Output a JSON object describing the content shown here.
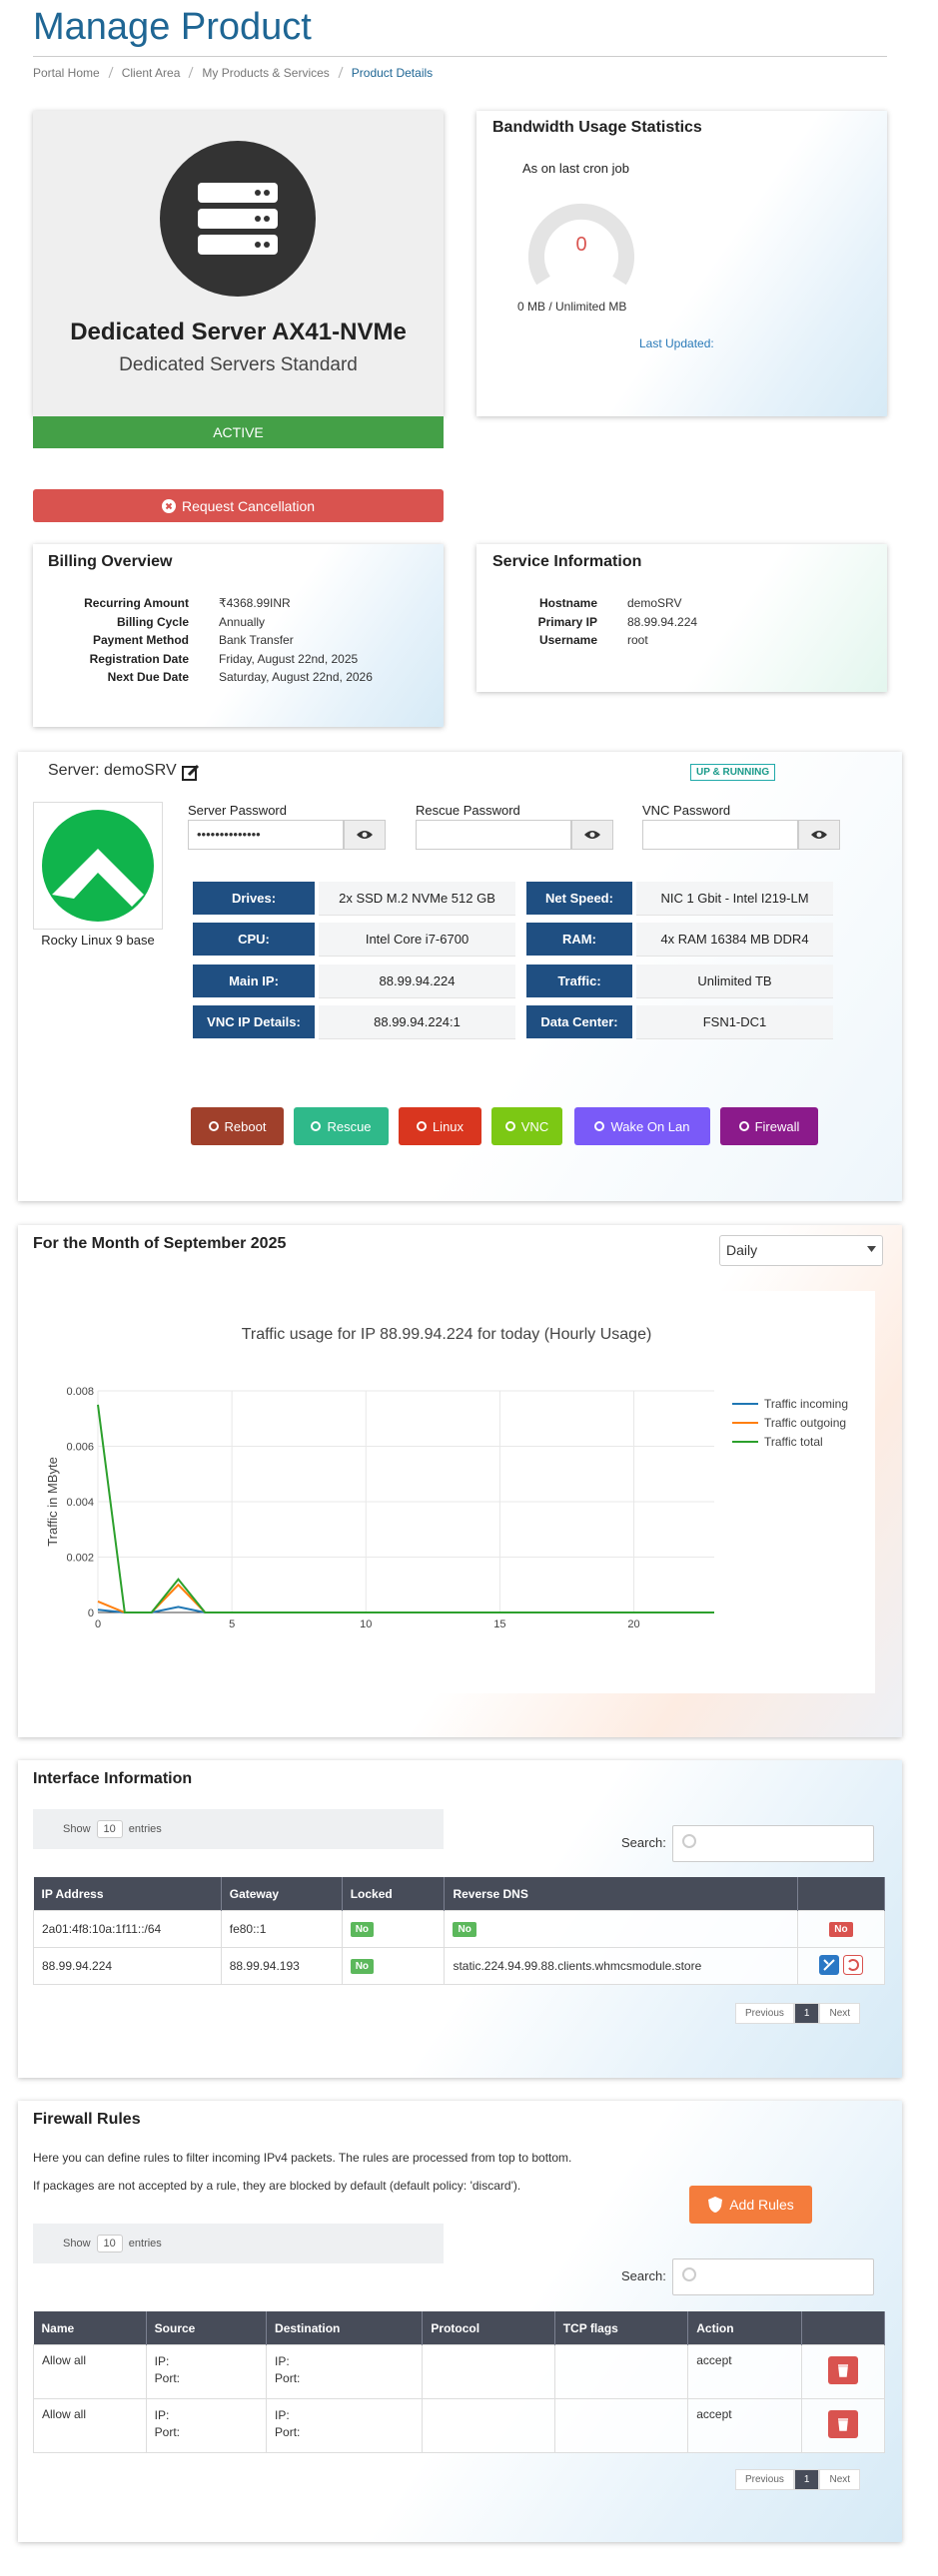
{
  "header": {
    "title": "Manage Product",
    "breadcrumb": [
      "Portal Home",
      "Client Area",
      "My Products & Services",
      "Product Details"
    ]
  },
  "product": {
    "name": "Dedicated Server AX41-NVMe",
    "group": "Dedicated Servers Standard",
    "status": "ACTIVE",
    "cancel_button": "Request Cancellation"
  },
  "bandwidth": {
    "title": "Bandwidth Usage Statistics",
    "subtitle": "As on last cron job",
    "gauge_value": 0,
    "usage": "0 MB / Unlimited MB",
    "last_updated": "Last Updated:"
  },
  "billing": {
    "title": "Billing Overview",
    "rows": [
      [
        "Recurring Amount",
        "₹4368.99INR"
      ],
      [
        "Billing Cycle",
        "Annually"
      ],
      [
        "Payment Method",
        "Bank Transfer"
      ],
      [
        "Registration Date",
        "Friday, August 22nd, 2025"
      ],
      [
        "Next Due Date",
        "Saturday, August 22nd, 2026"
      ]
    ]
  },
  "service": {
    "title": "Service Information",
    "rows": [
      [
        "Hostname",
        "demoSRV"
      ],
      [
        "Primary IP",
        "88.99.94.224"
      ],
      [
        "Username",
        "root"
      ]
    ]
  },
  "server": {
    "title": "Server: demoSRV",
    "status": "UP & RUNNING",
    "os": "Rocky Linux 9 base",
    "passwords": [
      {
        "label": "Server Password",
        "value": "••••••••••••••"
      },
      {
        "label": "Rescue Password"
      },
      {
        "label": "VNC Password"
      }
    ],
    "specs": [
      [
        "Drives:",
        "2x SSD M.2 NVMe 512 GB",
        "Net Speed:",
        "NIC 1 Gbit - Intel I219-LM"
      ],
      [
        "CPU:",
        "Intel Core i7-6700",
        "RAM:",
        "4x RAM 16384 MB DDR4"
      ],
      [
        "Main IP:",
        "88.99.94.224",
        "Traffic:",
        "Unlimited TB"
      ],
      [
        "VNC IP Details:",
        "88.99.94.224:1",
        "Data Center:",
        "FSN1-DC1"
      ]
    ],
    "actions": [
      "Reboot",
      "Rescue",
      "Linux",
      "VNC",
      "Wake On Lan",
      "Firewall"
    ]
  },
  "graph": {
    "title": "For the Month of September 2025",
    "period": "Daily"
  },
  "chart_data": {
    "type": "line",
    "title": "Traffic usage for IP 88.99.94.224 for today (Hourly Usage)",
    "y_label": "Traffic in MByte",
    "x": [
      0,
      1,
      2,
      3,
      4,
      5,
      6,
      7,
      8,
      9,
      10,
      11,
      12,
      13,
      14,
      15,
      16,
      17,
      18,
      19,
      20,
      21,
      22,
      23
    ],
    "xlim": [
      0,
      23
    ],
    "xticks": [
      0,
      5,
      10,
      15,
      20
    ],
    "ylim": [
      0,
      0.008
    ],
    "yticks": [
      0,
      0.002,
      0.004,
      0.006,
      0.008
    ],
    "grid": true,
    "legend": "right",
    "series": [
      {
        "name": "Traffic incoming",
        "color": "#1f77b4",
        "values": [
          0.0001,
          0,
          0,
          0.0002,
          0,
          0,
          0,
          0,
          0,
          0,
          0,
          0,
          0,
          0,
          0,
          0,
          0,
          0,
          0,
          0,
          0,
          0,
          0,
          0
        ]
      },
      {
        "name": "Traffic outgoing",
        "color": "#ff7f0e",
        "values": [
          0.0004,
          0,
          0,
          0.001,
          0,
          0,
          0,
          0,
          0,
          0,
          0,
          0,
          0,
          0,
          0,
          0,
          0,
          0,
          0,
          0,
          0,
          0,
          0,
          0
        ]
      },
      {
        "name": "Traffic total",
        "color": "#2ca02c",
        "values": [
          0.0075,
          0,
          0,
          0.0012,
          0,
          0,
          0,
          0,
          0,
          0,
          0,
          0,
          0,
          0,
          0,
          0,
          0,
          0,
          0,
          0,
          0,
          0,
          0,
          0
        ]
      }
    ]
  },
  "interfaces": {
    "title": "Interface Information",
    "show_label": "Show",
    "page_length": 10,
    "entries_label": "entries",
    "search_label": "Search:",
    "columns": [
      "IP Address",
      "Gateway",
      "Locked",
      "Reverse DNS"
    ],
    "rows": [
      {
        "ip": "2a01:4f8:10a:1f11::/64",
        "gateway": "fe80::1",
        "locked": "No",
        "rdns": "No",
        "action": "No"
      },
      {
        "ip": "88.99.94.224",
        "gateway": "88.99.94.193",
        "locked": "No",
        "rdns": "static.224.94.99.88.clients.whmcsmodule.store"
      }
    ],
    "pagination": [
      "Previous",
      "1",
      "Next"
    ]
  },
  "firewall": {
    "title": "Firewall Rules",
    "description": [
      "Here you can define rules to filter incoming IPv4 packets. The rules are processed from top to bottom.",
      "If packages are not accepted by a rule, they are blocked by default (default policy: 'discard')."
    ],
    "add_button": "Add Rules",
    "show_label": "Show",
    "page_length": 10,
    "entries_label": "entries",
    "search_label": "Search:",
    "columns": [
      "Name",
      "Source",
      "Destination",
      "Protocol",
      "TCP flags",
      "Action"
    ],
    "rows": [
      {
        "name": "Allow all",
        "source": [
          "IP:",
          "Port:"
        ],
        "destination": [
          "IP:",
          "Port:"
        ],
        "action": "accept"
      },
      {
        "name": "Allow all",
        "source": [
          "IP:",
          "Port:"
        ],
        "destination": [
          "IP:",
          "Port:"
        ],
        "action": "accept"
      }
    ],
    "pagination": [
      "Previous",
      "1",
      "Next"
    ]
  }
}
